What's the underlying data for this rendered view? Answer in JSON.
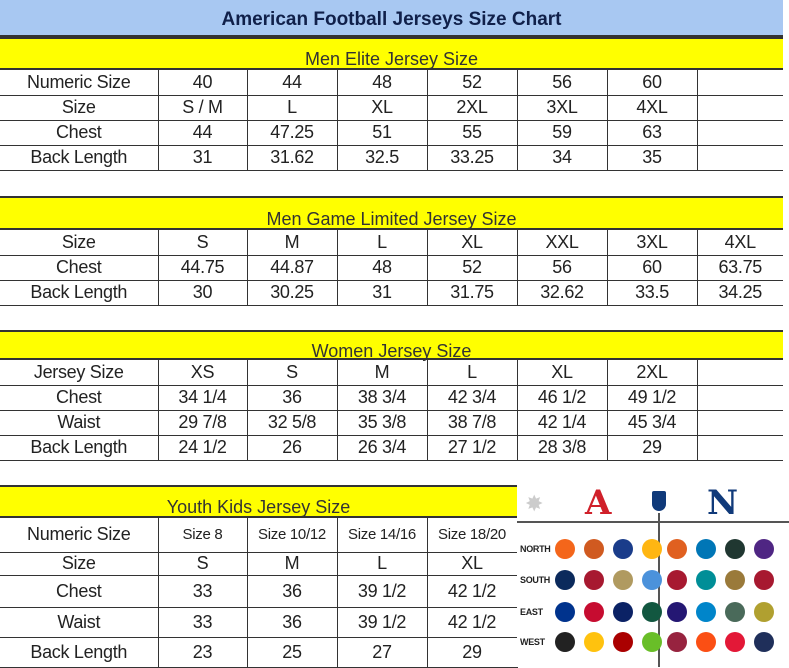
{
  "title": "American Football Jerseys Size Chart",
  "colors": {
    "title_bg": "#a8c8f2",
    "section_bg": "#ffff00",
    "afc": "#d0202a",
    "nfc": "#103a7a"
  },
  "sections": [
    {
      "header": "Men Elite Jersey Size",
      "rows": [
        [
          "Numeric Size",
          "40",
          "44",
          "48",
          "52",
          "56",
          "60",
          ""
        ],
        [
          "Size",
          "S / M",
          "L",
          "XL",
          "2XL",
          "3XL",
          "4XL",
          ""
        ],
        [
          "Chest",
          "44",
          "47.25",
          "51",
          "55",
          "59",
          "63",
          ""
        ],
        [
          "Back Length",
          "31",
          "31.62",
          "32.5",
          "33.25",
          "34",
          "35",
          ""
        ]
      ]
    },
    {
      "header": "Men Game Limited Jersey Size",
      "rows": [
        [
          "Size",
          "S",
          "M",
          "L",
          "XL",
          "XXL",
          "3XL",
          "4XL"
        ],
        [
          "Chest",
          "44.75",
          "44.87",
          "48",
          "52",
          "56",
          "60",
          "63.75"
        ],
        [
          "Back Length",
          "30",
          "30.25",
          "31",
          "31.75",
          "32.62",
          "33.5",
          "34.25"
        ]
      ]
    },
    {
      "header": "Women Jersey Size",
      "rows": [
        [
          "Jersey Size",
          "XS",
          "S",
          "M",
          "L",
          "XL",
          "2XL",
          ""
        ],
        [
          "Chest",
          "34 1/4",
          "36",
          "38 3/4",
          "42 3/4",
          "46 1/2",
          "49 1/2",
          ""
        ],
        [
          "Waist",
          "29 7/8",
          "32 5/8",
          "35 3/8",
          "38 7/8",
          "42 1/4",
          "45 3/4",
          ""
        ],
        [
          "Back Length",
          "24 1/2",
          "26",
          "26 3/4",
          "27 1/2",
          "28 3/8",
          "29",
          ""
        ]
      ]
    },
    {
      "header": "Youth Kids Jersey Size",
      "rows": [
        [
          "Numeric Size",
          "Size 8",
          "Size 10/12",
          "Size 14/16",
          "Size 18/20"
        ],
        [
          "Size",
          "S",
          "M",
          "L",
          "XL"
        ],
        [
          "Chest",
          "33",
          "36",
          "39 1/2",
          "42 1/2"
        ],
        [
          "Waist",
          "33",
          "36",
          "39 1/2",
          "42 1/2"
        ],
        [
          "Back Length",
          "23",
          "25",
          "27",
          "29"
        ]
      ]
    }
  ],
  "logos": {
    "afc_letter": "A",
    "nfc_letter": "N",
    "divisions": [
      "NORTH",
      "SOUTH",
      "EAST",
      "WEST"
    ],
    "afc_teams": [
      [
        "bengals-logo",
        "browns-logo",
        "colts-logo",
        "steelers-logo"
      ],
      [
        "cowboys-logo",
        "texans-logo",
        "saints-logo",
        "titans-logo"
      ],
      [
        "bills-logo",
        "patriots-logo",
        "giants-logo",
        "jets-logo"
      ],
      [
        "raiders-logo",
        "chargers-logo",
        "49ers-logo",
        "seahawks-logo"
      ]
    ],
    "nfc_teams": [
      [
        "bears-logo",
        "lions-logo",
        "packers-logo",
        "vikings-logo"
      ],
      [
        "falcons-logo",
        "dolphins-logo",
        "jaguars-logo",
        "buccaneers-logo"
      ],
      [
        "ravens-logo",
        "panthers-logo",
        "eagles-logo",
        "redskins-logo"
      ],
      [
        "cardinals-logo",
        "broncos-logo",
        "chiefs-logo",
        "rams-logo"
      ]
    ],
    "team_colors": {
      "afc": [
        [
          "#f4661b",
          "#d05a20",
          "#1a3c8a",
          "#ffb612"
        ],
        [
          "#0b2a5c",
          "#a71930",
          "#b09a60",
          "#4b92db"
        ],
        [
          "#00338d",
          "#c60c30",
          "#0b2265",
          "#125740"
        ],
        [
          "#222",
          "#ffc20e",
          "#aa0000",
          "#69be28"
        ]
      ],
      "nfc": [
        [
          "#e06020",
          "#0076b6",
          "#203731",
          "#4f2683"
        ],
        [
          "#a71930",
          "#008e97",
          "#9a7a3a",
          "#a71930"
        ],
        [
          "#241773",
          "#0085ca",
          "#4a6a5a",
          "#b0a030"
        ],
        [
          "#97233f",
          "#fb4f14",
          "#e31837",
          "#1f2f5a"
        ]
      ]
    }
  }
}
